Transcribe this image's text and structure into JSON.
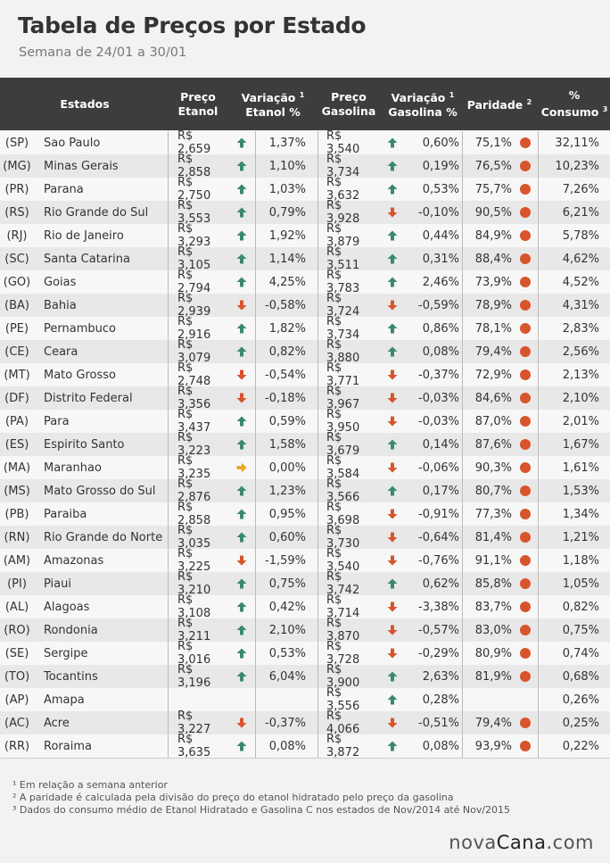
{
  "title": "Tabela de Preços por Estado",
  "subtitle": "Semana de 24/01 a 30/01",
  "headers": {
    "estados": "Estados",
    "preco_etanol": [
      "Preço",
      "Etanol"
    ],
    "var_etanol": [
      "Variação",
      "Etanol %"
    ],
    "preco_gasolina": [
      "Preço",
      "Gasolina"
    ],
    "var_gasolina": [
      "Variação",
      "Gasolina %"
    ],
    "paridade": "Paridade",
    "consumo": [
      "%",
      "Consumo"
    ],
    "sup1": "1",
    "sup2": "2",
    "sup3": "3"
  },
  "rows": [
    {
      "uf": "(SP)",
      "state": "Sao Paulo",
      "pe": "R$ 2,659",
      "te": "up",
      "ve": "1,37%",
      "pg": "R$ 3,540",
      "tg": "up",
      "vg": "0,60%",
      "par": "75,1%",
      "cons": "32,11%"
    },
    {
      "uf": "(MG)",
      "state": "Minas Gerais",
      "pe": "R$ 2,858",
      "te": "up",
      "ve": "1,10%",
      "pg": "R$ 3,734",
      "tg": "up",
      "vg": "0,19%",
      "par": "76,5%",
      "cons": "10,23%"
    },
    {
      "uf": "(PR)",
      "state": "Parana",
      "pe": "R$ 2,750",
      "te": "up",
      "ve": "1,03%",
      "pg": "R$ 3,632",
      "tg": "up",
      "vg": "0,53%",
      "par": "75,7%",
      "cons": "7,26%"
    },
    {
      "uf": "(RS)",
      "state": "Rio Grande do Sul",
      "pe": "R$ 3,553",
      "te": "up",
      "ve": "0,79%",
      "pg": "R$ 3,928",
      "tg": "down",
      "vg": "-0,10%",
      "par": "90,5%",
      "cons": "6,21%"
    },
    {
      "uf": "(RJ)",
      "state": "Rio de Janeiro",
      "pe": "R$ 3,293",
      "te": "up",
      "ve": "1,92%",
      "pg": "R$ 3,879",
      "tg": "up",
      "vg": "0,44%",
      "par": "84,9%",
      "cons": "5,78%"
    },
    {
      "uf": "(SC)",
      "state": "Santa Catarina",
      "pe": "R$ 3,105",
      "te": "up",
      "ve": "1,14%",
      "pg": "R$ 3,511",
      "tg": "up",
      "vg": "0,31%",
      "par": "88,4%",
      "cons": "4,62%"
    },
    {
      "uf": "(GO)",
      "state": "Goias",
      "pe": "R$ 2,794",
      "te": "up",
      "ve": "4,25%",
      "pg": "R$ 3,783",
      "tg": "up",
      "vg": "2,46%",
      "par": "73,9%",
      "cons": "4,52%"
    },
    {
      "uf": "(BA)",
      "state": "Bahia",
      "pe": "R$ 2,939",
      "te": "down",
      "ve": "-0,58%",
      "pg": "R$ 3,724",
      "tg": "down",
      "vg": "-0,59%",
      "par": "78,9%",
      "cons": "4,31%"
    },
    {
      "uf": "(PE)",
      "state": "Pernambuco",
      "pe": "R$ 2,916",
      "te": "up",
      "ve": "1,82%",
      "pg": "R$ 3,734",
      "tg": "up",
      "vg": "0,86%",
      "par": "78,1%",
      "cons": "2,83%"
    },
    {
      "uf": "(CE)",
      "state": "Ceara",
      "pe": "R$ 3,079",
      "te": "up",
      "ve": "0,82%",
      "pg": "R$ 3,880",
      "tg": "up",
      "vg": "0,08%",
      "par": "79,4%",
      "cons": "2,56%"
    },
    {
      "uf": "(MT)",
      "state": "Mato Grosso",
      "pe": "R$ 2,748",
      "te": "down",
      "ve": "-0,54%",
      "pg": "R$ 3,771",
      "tg": "down",
      "vg": "-0,37%",
      "par": "72,9%",
      "cons": "2,13%"
    },
    {
      "uf": "(DF)",
      "state": "Distrito Federal",
      "pe": "R$ 3,356",
      "te": "down",
      "ve": "-0,18%",
      "pg": "R$ 3,967",
      "tg": "down",
      "vg": "-0,03%",
      "par": "84,6%",
      "cons": "2,10%"
    },
    {
      "uf": "(PA)",
      "state": "Para",
      "pe": "R$ 3,437",
      "te": "up",
      "ve": "0,59%",
      "pg": "R$ 3,950",
      "tg": "down",
      "vg": "-0,03%",
      "par": "87,0%",
      "cons": "2,01%"
    },
    {
      "uf": "(ES)",
      "state": "Espirito Santo",
      "pe": "R$ 3,223",
      "te": "up",
      "ve": "1,58%",
      "pg": "R$ 3,679",
      "tg": "up",
      "vg": "0,14%",
      "par": "87,6%",
      "cons": "1,67%"
    },
    {
      "uf": "(MA)",
      "state": "Maranhao",
      "pe": "R$ 3,235",
      "te": "flat",
      "ve": "0,00%",
      "pg": "R$ 3,584",
      "tg": "down",
      "vg": "-0,06%",
      "par": "90,3%",
      "cons": "1,61%"
    },
    {
      "uf": "(MS)",
      "state": "Mato Grosso do Sul",
      "pe": "R$ 2,876",
      "te": "up",
      "ve": "1,23%",
      "pg": "R$ 3,566",
      "tg": "up",
      "vg": "0,17%",
      "par": "80,7%",
      "cons": "1,53%"
    },
    {
      "uf": "(PB)",
      "state": "Paraiba",
      "pe": "R$ 2,858",
      "te": "up",
      "ve": "0,95%",
      "pg": "R$ 3,698",
      "tg": "down",
      "vg": "-0,91%",
      "par": "77,3%",
      "cons": "1,34%"
    },
    {
      "uf": "(RN)",
      "state": "Rio Grande do Norte",
      "pe": "R$ 3,035",
      "te": "up",
      "ve": "0,60%",
      "pg": "R$ 3,730",
      "tg": "down",
      "vg": "-0,64%",
      "par": "81,4%",
      "cons": "1,21%"
    },
    {
      "uf": "(AM)",
      "state": "Amazonas",
      "pe": "R$ 3,225",
      "te": "down",
      "ve": "-1,59%",
      "pg": "R$ 3,540",
      "tg": "down",
      "vg": "-0,76%",
      "par": "91,1%",
      "cons": "1,18%"
    },
    {
      "uf": "(PI)",
      "state": "Piaui",
      "pe": "R$ 3,210",
      "te": "up",
      "ve": "0,75%",
      "pg": "R$ 3,742",
      "tg": "up",
      "vg": "0,62%",
      "par": "85,8%",
      "cons": "1,05%"
    },
    {
      "uf": "(AL)",
      "state": "Alagoas",
      "pe": "R$ 3,108",
      "te": "up",
      "ve": "0,42%",
      "pg": "R$ 3,714",
      "tg": "down",
      "vg": "-3,38%",
      "par": "83,7%",
      "cons": "0,82%"
    },
    {
      "uf": "(RO)",
      "state": "Rondonia",
      "pe": "R$ 3,211",
      "te": "up",
      "ve": "2,10%",
      "pg": "R$ 3,870",
      "tg": "down",
      "vg": "-0,57%",
      "par": "83,0%",
      "cons": "0,75%"
    },
    {
      "uf": "(SE)",
      "state": "Sergipe",
      "pe": "R$ 3,016",
      "te": "up",
      "ve": "0,53%",
      "pg": "R$ 3,728",
      "tg": "down",
      "vg": "-0,29%",
      "par": "80,9%",
      "cons": "0,74%"
    },
    {
      "uf": "(TO)",
      "state": "Tocantins",
      "pe": "R$ 3,196",
      "te": "up",
      "ve": "6,04%",
      "pg": "R$ 3,900",
      "tg": "up",
      "vg": "2,63%",
      "par": "81,9%",
      "cons": "0,68%"
    },
    {
      "uf": "(AP)",
      "state": "Amapa",
      "pe": "",
      "te": "",
      "ve": "",
      "pg": "R$ 3,556",
      "tg": "up",
      "vg": "0,28%",
      "par": "",
      "cons": "0,26%"
    },
    {
      "uf": "(AC)",
      "state": "Acre",
      "pe": "R$ 3,227",
      "te": "down",
      "ve": "-0,37%",
      "pg": "R$ 4,066",
      "tg": "down",
      "vg": "-0,51%",
      "par": "79,4%",
      "cons": "0,25%"
    },
    {
      "uf": "(RR)",
      "state": "Roraima",
      "pe": "R$ 3,635",
      "te": "up",
      "ve": "0,08%",
      "pg": "R$ 3,872",
      "tg": "up",
      "vg": "0,08%",
      "par": "93,9%",
      "cons": "0,22%"
    }
  ],
  "footnotes": [
    "¹ Em relação a semana anterior",
    "² A paridade é calculada pela divisão do preço do etanol hidratado pelo preço da gasolina",
    "³ Dados do consumo médio de Etanol Hidratado e Gasolina C nos estados de Nov/2014 até Nov/2015"
  ],
  "brand": {
    "part1": "nova",
    "part2": "Cana",
    "part3": ".com"
  },
  "colors": {
    "up": "#3a8a6a",
    "down": "#d8542c",
    "flat": "#e8a92a",
    "header": "#3d3d3d"
  }
}
